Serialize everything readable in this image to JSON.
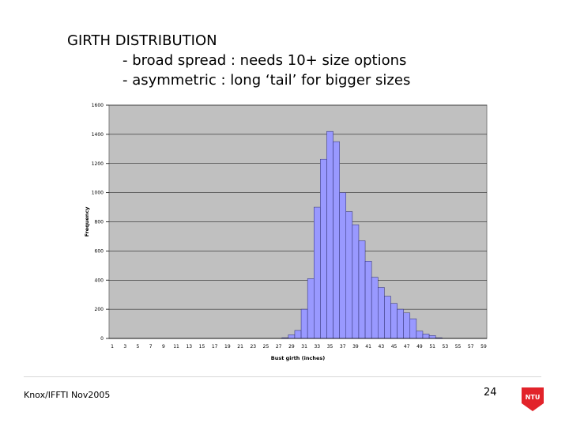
{
  "slide": {
    "title": "GIRTH DISTRIBUTION",
    "bullets": [
      "- broad spread : needs 10+ size options",
      "- asymmetric : long ‘tail’ for bigger sizes"
    ],
    "footer": "Knox/IFFTI Nov2005",
    "page_number": "24",
    "logo_text": "NTU",
    "logo_color": "#e2232a"
  },
  "chart_data": {
    "type": "bar",
    "xlabel": "Bust girth (inches)",
    "ylabel": "Frequency",
    "ylim": [
      0,
      1600
    ],
    "yticks": [
      0,
      200,
      400,
      600,
      800,
      1000,
      1200,
      1400,
      1600
    ],
    "xtick_labels": [
      "1",
      "3",
      "5",
      "7",
      "9",
      "11",
      "13",
      "15",
      "17",
      "19",
      "21",
      "23",
      "25",
      "27",
      "29",
      "31",
      "33",
      "35",
      "37",
      "39",
      "41",
      "43",
      "45",
      "47",
      "49",
      "51",
      "53",
      "55",
      "57",
      "59"
    ],
    "categories": [
      1,
      2,
      3,
      4,
      5,
      6,
      7,
      8,
      9,
      10,
      11,
      12,
      13,
      14,
      15,
      16,
      17,
      18,
      19,
      20,
      21,
      22,
      23,
      24,
      25,
      26,
      27,
      28,
      29,
      30,
      31,
      32,
      33,
      34,
      35,
      36,
      37,
      38,
      39,
      40,
      41,
      42,
      43,
      44,
      45,
      46,
      47,
      48,
      49,
      50,
      51,
      52,
      53,
      54,
      55,
      56,
      57,
      58,
      59
    ],
    "values": [
      0,
      0,
      0,
      0,
      0,
      0,
      0,
      0,
      0,
      0,
      0,
      0,
      0,
      0,
      0,
      0,
      0,
      0,
      0,
      0,
      0,
      0,
      0,
      0,
      0,
      0,
      0,
      5,
      25,
      55,
      200,
      410,
      900,
      1230,
      1420,
      1350,
      1000,
      870,
      780,
      670,
      530,
      420,
      350,
      290,
      240,
      200,
      175,
      135,
      50,
      30,
      20,
      5,
      0,
      0,
      0,
      0,
      0,
      0,
      0
    ],
    "plot_bg": "#c0c0c0",
    "bar_fill": "#9999ff",
    "bar_stroke": "#2b2b6b",
    "grid": true
  }
}
